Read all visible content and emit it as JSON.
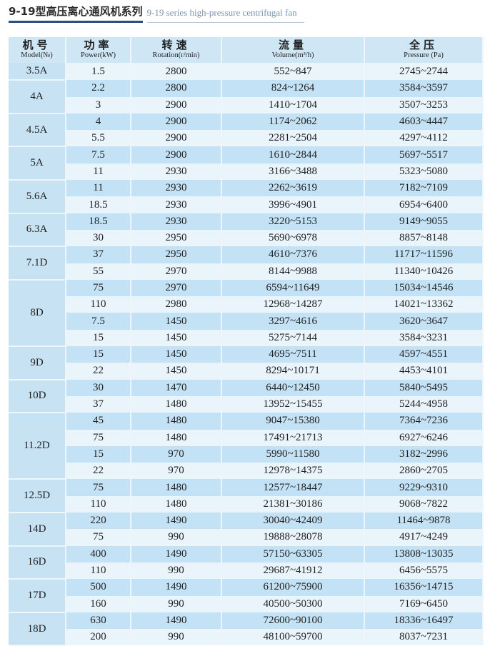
{
  "title": {
    "cn": "9-19型高压离心通风机系列",
    "en": "9-19 series high-pressure centrifugal fan"
  },
  "headers": [
    {
      "cn": "机号",
      "en": "Model(№)"
    },
    {
      "cn": "功率",
      "en": "Power(kW)"
    },
    {
      "cn": "转速",
      "en": "Rotation(r/min)"
    },
    {
      "cn": "流量",
      "en": "Volume(m³/h)"
    },
    {
      "cn": "全压",
      "en": "Pressure (Pa)"
    }
  ],
  "models": [
    {
      "model": "3.5A",
      "rows": [
        [
          "1.5",
          "2800",
          "552~847",
          "2745~2744"
        ]
      ]
    },
    {
      "model": "4A",
      "rows": [
        [
          "2.2",
          "2800",
          "824~1264",
          "3584~3597"
        ],
        [
          "3",
          "2900",
          "1410~1704",
          "3507~3253"
        ]
      ]
    },
    {
      "model": "4.5A",
      "rows": [
        [
          "4",
          "2900",
          "1174~2062",
          "4603~4447"
        ],
        [
          "5.5",
          "2900",
          "2281~2504",
          "4297~4112"
        ]
      ]
    },
    {
      "model": "5A",
      "rows": [
        [
          "7.5",
          "2900",
          "1610~2844",
          "5697~5517"
        ],
        [
          "11",
          "2930",
          "3166~3488",
          "5323~5080"
        ]
      ]
    },
    {
      "model": "5.6A",
      "rows": [
        [
          "11",
          "2930",
          "2262~3619",
          "7182~7109"
        ],
        [
          "18.5",
          "2930",
          "3996~4901",
          "6954~6400"
        ]
      ]
    },
    {
      "model": "6.3A",
      "rows": [
        [
          "18.5",
          "2930",
          "3220~5153",
          "9149~9055"
        ],
        [
          "30",
          "2950",
          "5690~6978",
          "8857~8148"
        ]
      ]
    },
    {
      "model": "7.1D",
      "rows": [
        [
          "37",
          "2950",
          "4610~7376",
          "11717~11596"
        ],
        [
          "55",
          "2970",
          "8144~9988",
          "11340~10426"
        ]
      ]
    },
    {
      "model": "8D",
      "rows": [
        [
          "75",
          "2970",
          "6594~11649",
          "15034~14546"
        ],
        [
          "110",
          "2980",
          "12968~14287",
          "14021~13362"
        ],
        [
          "7.5",
          "1450",
          "3297~4616",
          "3620~3647"
        ],
        [
          "15",
          "1450",
          "5275~7144",
          "3584~3231"
        ]
      ]
    },
    {
      "model": "9D",
      "rows": [
        [
          "15",
          "1450",
          "4695~7511",
          "4597~4551"
        ],
        [
          "22",
          "1450",
          "8294~10171",
          "4453~4101"
        ]
      ]
    },
    {
      "model": "10D",
      "rows": [
        [
          "30",
          "1470",
          "6440~12450",
          "5840~5495"
        ],
        [
          "37",
          "1480",
          "13952~15455",
          "5244~4958"
        ]
      ]
    },
    {
      "model": "11.2D",
      "rows": [
        [
          "45",
          "1480",
          "9047~15380",
          "7364~7236"
        ],
        [
          "75",
          "1480",
          "17491~21713",
          "6927~6246"
        ],
        [
          "15",
          "970",
          "5990~11580",
          "3182~2996"
        ],
        [
          "22",
          "970",
          "12978~14375",
          "2860~2705"
        ]
      ]
    },
    {
      "model": "12.5D",
      "rows": [
        [
          "75",
          "1480",
          "12577~18447",
          "9229~9310"
        ],
        [
          "110",
          "1480",
          "21381~30186",
          "9068~7822"
        ]
      ]
    },
    {
      "model": "14D",
      "rows": [
        [
          "220",
          "1490",
          "30040~42409",
          "11464~9878"
        ],
        [
          "75",
          "990",
          "19888~28078",
          "4917~4249"
        ]
      ]
    },
    {
      "model": "16D",
      "rows": [
        [
          "400",
          "1490",
          "57150~63305",
          "13808~13035"
        ],
        [
          "110",
          "990",
          "29687~41912",
          "6456~5575"
        ]
      ]
    },
    {
      "model": "17D",
      "rows": [
        [
          "500",
          "1490",
          "61200~75900",
          "16356~14715"
        ],
        [
          "160",
          "990",
          "40500~50300",
          "7169~6450"
        ]
      ]
    },
    {
      "model": "18D",
      "rows": [
        [
          "630",
          "1490",
          "72600~90100",
          "18336~16497"
        ],
        [
          "200",
          "990",
          "48100~59700",
          "8037~7231"
        ]
      ]
    }
  ]
}
